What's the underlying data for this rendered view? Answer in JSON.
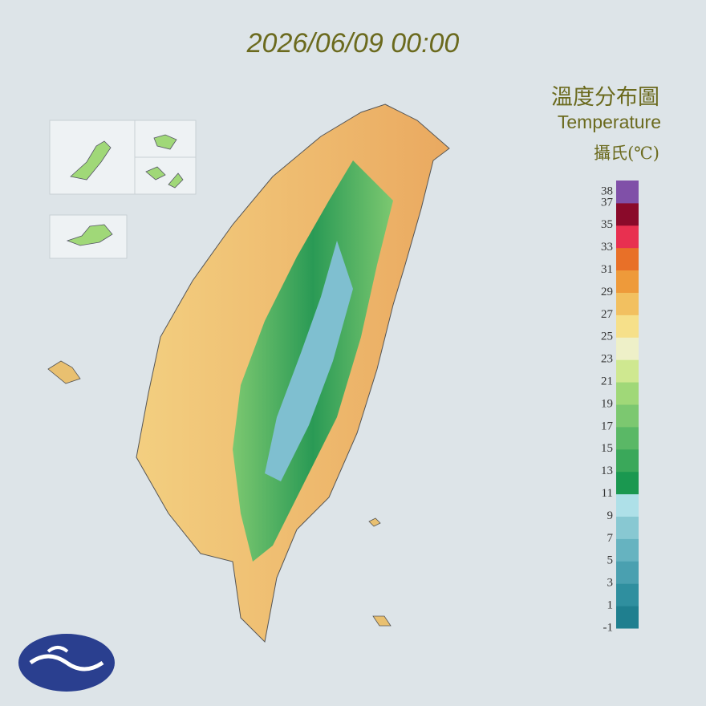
{
  "header": {
    "timestamp": "2026/06/09 00:00"
  },
  "legend": {
    "title": "溫度分布圖",
    "subtitle": "Temperature",
    "unit": "攝氏(℃)",
    "lim": [
      -1,
      39
    ],
    "ticks": [
      38,
      37,
      35,
      33,
      31,
      29,
      27,
      25,
      23,
      21,
      19,
      17,
      15,
      13,
      11,
      9,
      7,
      5,
      3,
      1,
      -1
    ],
    "colors": [
      "#1f7f8f",
      "#2f8f9f",
      "#4aa0b0",
      "#66b3c0",
      "#88c8d2",
      "#aee0e8",
      "#1a9850",
      "#3aa85a",
      "#5ab866",
      "#7cc870",
      "#a0d878",
      "#cfe890",
      "#eef0c8",
      "#f6e08a",
      "#f2c060",
      "#ee9a3a",
      "#e87028",
      "#e83050",
      "#8a0a2a",
      "#8050a8"
    ]
  }
}
